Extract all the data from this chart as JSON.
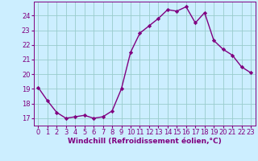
{
  "x_values": [
    0,
    1,
    2,
    3,
    4,
    5,
    6,
    7,
    8,
    9,
    10,
    11,
    12,
    13,
    14,
    15,
    16,
    17,
    18,
    19,
    20,
    21,
    22,
    23
  ],
  "y_values": [
    19.1,
    18.2,
    17.4,
    17.0,
    17.1,
    17.2,
    17.0,
    17.1,
    17.5,
    19.0,
    21.5,
    22.8,
    23.3,
    23.8,
    24.4,
    24.3,
    24.6,
    23.5,
    24.2,
    22.3,
    21.7,
    21.3,
    20.5,
    20.1
  ],
  "line_color": "#800080",
  "marker": "D",
  "marker_size": 2.2,
  "line_width": 1.0,
  "bg_color": "#cceeff",
  "grid_color": "#99cccc",
  "tick_color": "#800080",
  "label_color": "#800080",
  "xlabel": "Windchill (Refroidissement éolien,°C)",
  "xlabel_fontsize": 6.5,
  "ylabel_ticks": [
    17,
    18,
    19,
    20,
    21,
    22,
    23,
    24
  ],
  "xlim": [
    -0.5,
    23.5
  ],
  "ylim": [
    16.5,
    24.95
  ],
  "tick_fontsize": 6.0,
  "xtick_labels": [
    "0",
    "1",
    "2",
    "3",
    "4",
    "5",
    "6",
    "7",
    "8",
    "9",
    "10",
    "11",
    "12",
    "13",
    "14",
    "15",
    "16",
    "17",
    "18",
    "19",
    "20",
    "21",
    "22",
    "23"
  ]
}
